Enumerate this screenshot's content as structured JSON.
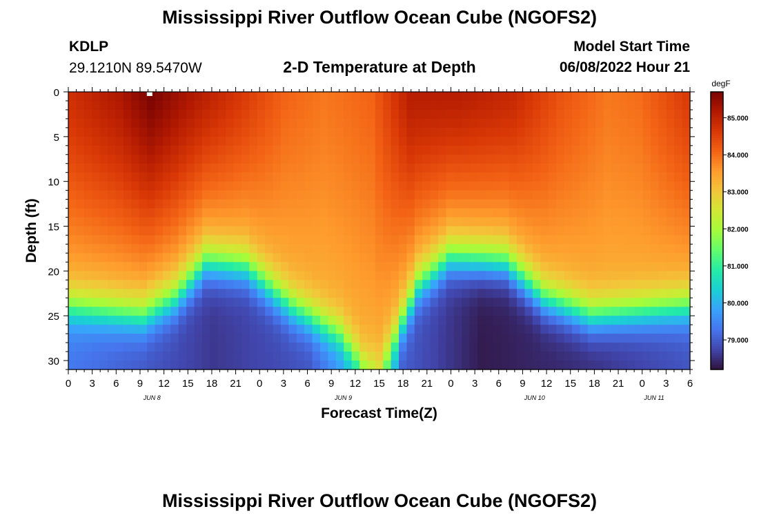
{
  "header": {
    "title": "Mississippi River Outflow Ocean Cube (NGOFS2)",
    "station_id": "KDLP",
    "station_coords": "29.1210N  89.5470W",
    "model_start_label": "Model Start Time",
    "model_start_value": "06/08/2022 Hour 21"
  },
  "footer": {
    "title": "Mississippi River Outflow Ocean Cube (NGOFS2)"
  },
  "colors": {
    "background": "#ffffff",
    "text": "#000000",
    "marker": "#ffffff"
  },
  "chart_data": {
    "type": "heatmap",
    "title": "2-D Temperature at Depth",
    "xlabel": "Forecast Time(Z)",
    "ylabel": "Depth (ft)",
    "x_range_hours": [
      0,
      78
    ],
    "ylim": [
      0,
      31
    ],
    "x_tick_labels": [
      "0",
      "3",
      "6",
      "9",
      "12",
      "15",
      "18",
      "21",
      "0",
      "3",
      "6",
      "9",
      "12",
      "15",
      "18",
      "21",
      "0",
      "3",
      "6",
      "9",
      "12",
      "15",
      "18",
      "21",
      "0",
      "3",
      "6"
    ],
    "y_ticks": [
      0,
      5,
      10,
      15,
      20,
      25,
      30
    ],
    "date_labels": [
      {
        "label": "JUN 8",
        "hour": 10.5
      },
      {
        "label": "JUN 9",
        "hour": 34.5
      },
      {
        "label": "JUN 10",
        "hour": 58.5
      },
      {
        "label": "JUN 11",
        "hour": 73.5
      }
    ],
    "colorbar": {
      "unit": "degF",
      "min": 78.2,
      "max": 85.7,
      "tick_labels": [
        "85.000",
        "84.000",
        "83.000",
        "82.000",
        "81.000",
        "80.000",
        "79.000"
      ],
      "tick_values": [
        85,
        84,
        83,
        82,
        81,
        80,
        79
      ]
    },
    "colormap": [
      "#30123b",
      "#4145ab",
      "#4675ed",
      "#39a2fc",
      "#1bcfd4",
      "#24eca6",
      "#61fc6c",
      "#a4fc3b",
      "#d1e834",
      "#f3c63a",
      "#fe9b2d",
      "#f36315",
      "#d93806",
      "#b11901",
      "#7a0403"
    ],
    "surface_temperature_degF": [
      {
        "hour": 0,
        "value": 84.8
      },
      {
        "hour": 6,
        "value": 85.2
      },
      {
        "hour": 10,
        "value": 85.7
      },
      {
        "hour": 14,
        "value": 85.3
      },
      {
        "hour": 22,
        "value": 84.6
      },
      {
        "hour": 27,
        "value": 84.1
      },
      {
        "hour": 32,
        "value": 83.9
      },
      {
        "hour": 38,
        "value": 84.1
      },
      {
        "hour": 43,
        "value": 85.1
      },
      {
        "hour": 49,
        "value": 85.1
      },
      {
        "hour": 56,
        "value": 84.9
      },
      {
        "hour": 62,
        "value": 84.3
      },
      {
        "hour": 68,
        "value": 83.9
      },
      {
        "hour": 72,
        "value": 84.0
      },
      {
        "hour": 78,
        "value": 84.6
      }
    ],
    "mixed_layer_depth_ft": [
      {
        "hour": 0,
        "value": 21.5
      },
      {
        "hour": 9,
        "value": 22.5
      },
      {
        "hour": 13,
        "value": 20.5
      },
      {
        "hour": 17,
        "value": 16.5
      },
      {
        "hour": 22,
        "value": 17.0
      },
      {
        "hour": 28,
        "value": 21.5
      },
      {
        "hour": 34,
        "value": 24.5
      },
      {
        "hour": 37,
        "value": 28.0
      },
      {
        "hour": 39,
        "value": 28.5
      },
      {
        "hour": 41,
        "value": 25.0
      },
      {
        "hour": 44,
        "value": 19.0
      },
      {
        "hour": 48,
        "value": 16.0
      },
      {
        "hour": 55,
        "value": 16.5
      },
      {
        "hour": 60,
        "value": 20.5
      },
      {
        "hour": 66,
        "value": 22.5
      },
      {
        "hour": 78,
        "value": 21.5
      }
    ],
    "bottom_temperature_degF": [
      {
        "hour": 0,
        "value": 79.3
      },
      {
        "hour": 18,
        "value": 78.6
      },
      {
        "hour": 30,
        "value": 78.9
      },
      {
        "hour": 36,
        "value": 80.0
      },
      {
        "hour": 39,
        "value": 81.6
      },
      {
        "hour": 42,
        "value": 79.0
      },
      {
        "hour": 52,
        "value": 78.3
      },
      {
        "hour": 66,
        "value": 78.5
      },
      {
        "hour": 78,
        "value": 78.9
      }
    ]
  }
}
